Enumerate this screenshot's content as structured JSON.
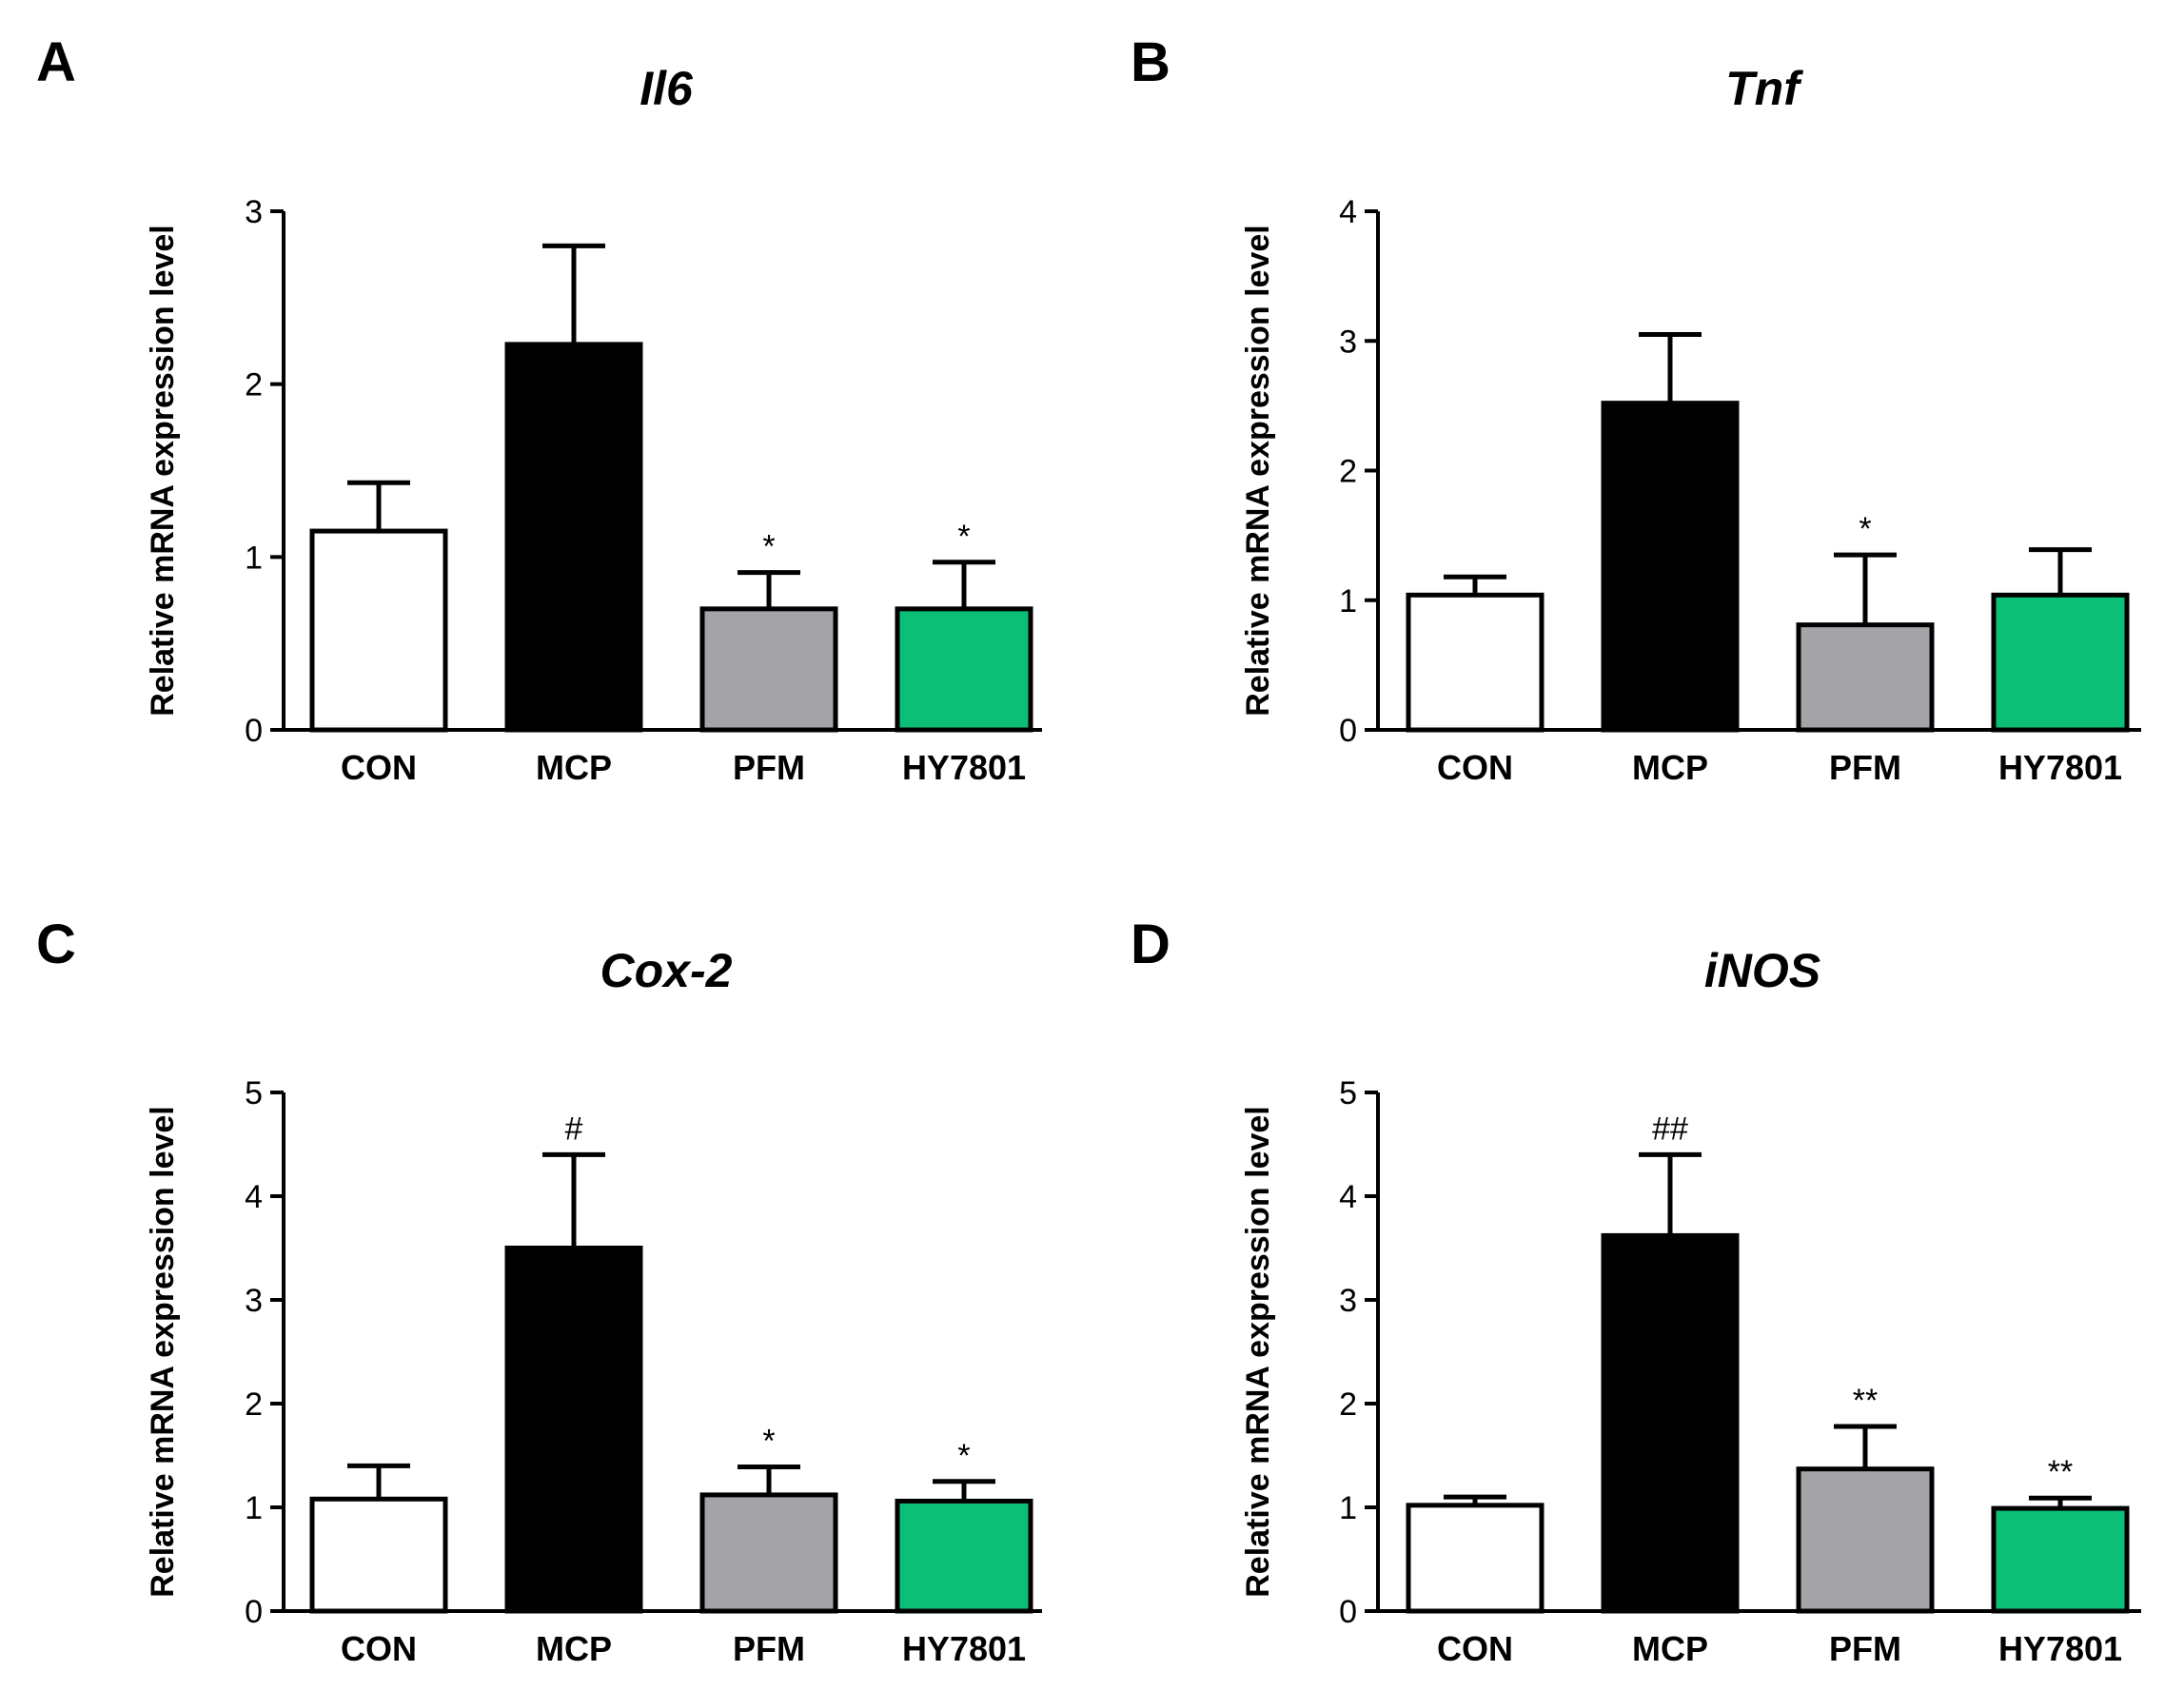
{
  "chart_data": [
    {
      "type": "bar",
      "panel": "A",
      "title": "Il6",
      "xlabel": "",
      "ylabel": "Relative mRNA expression level",
      "ylim": [
        0,
        3
      ],
      "yticks": [
        0,
        1,
        2,
        3
      ],
      "categories": [
        "CON",
        "MCP",
        "PFM",
        "HY7801"
      ],
      "values": [
        1.15,
        2.23,
        0.7,
        0.7
      ],
      "errors": [
        0.28,
        0.57,
        0.21,
        0.27
      ],
      "colors": [
        "#ffffff",
        "#000000",
        "#a3a3a8",
        "#0bbf76"
      ],
      "annotations": [
        "",
        "",
        "*",
        "*"
      ]
    },
    {
      "type": "bar",
      "panel": "B",
      "title": "Tnf",
      "xlabel": "",
      "ylabel": "Relative mRNA expression level",
      "ylim": [
        0,
        4
      ],
      "yticks": [
        0,
        1,
        2,
        3,
        4
      ],
      "categories": [
        "CON",
        "MCP",
        "PFM",
        "HY7801"
      ],
      "values": [
        1.04,
        2.52,
        0.81,
        1.04
      ],
      "errors": [
        0.14,
        0.53,
        0.54,
        0.35
      ],
      "colors": [
        "#ffffff",
        "#000000",
        "#a3a3a8",
        "#0bbf76"
      ],
      "annotations": [
        "",
        "",
        "*",
        ""
      ]
    },
    {
      "type": "bar",
      "panel": "C",
      "title": "Cox-2",
      "xlabel": "",
      "ylabel": "Relative mRNA expression level",
      "ylim": [
        0,
        5
      ],
      "yticks": [
        0,
        1,
        2,
        3,
        4,
        5
      ],
      "categories": [
        "CON",
        "MCP",
        "PFM",
        "HY7801"
      ],
      "values": [
        1.08,
        3.5,
        1.12,
        1.06
      ],
      "errors": [
        0.32,
        0.9,
        0.27,
        0.19
      ],
      "colors": [
        "#ffffff",
        "#000000",
        "#a3a3a8",
        "#0bbf76"
      ],
      "annotations": [
        "",
        "#",
        "*",
        "*"
      ]
    },
    {
      "type": "bar",
      "panel": "D",
      "title": "iNOS",
      "xlabel": "",
      "ylabel": "Relative mRNA expression level",
      "ylim": [
        0,
        5
      ],
      "yticks": [
        0,
        1,
        2,
        3,
        4,
        5
      ],
      "categories": [
        "CON",
        "MCP",
        "PFM",
        "HY7801"
      ],
      "values": [
        1.02,
        3.62,
        1.37,
        0.99
      ],
      "errors": [
        0.08,
        0.78,
        0.41,
        0.1
      ],
      "colors": [
        "#ffffff",
        "#000000",
        "#a3a3a8",
        "#0bbf76"
      ],
      "annotations": [
        "",
        "##",
        "**",
        "**"
      ]
    }
  ]
}
